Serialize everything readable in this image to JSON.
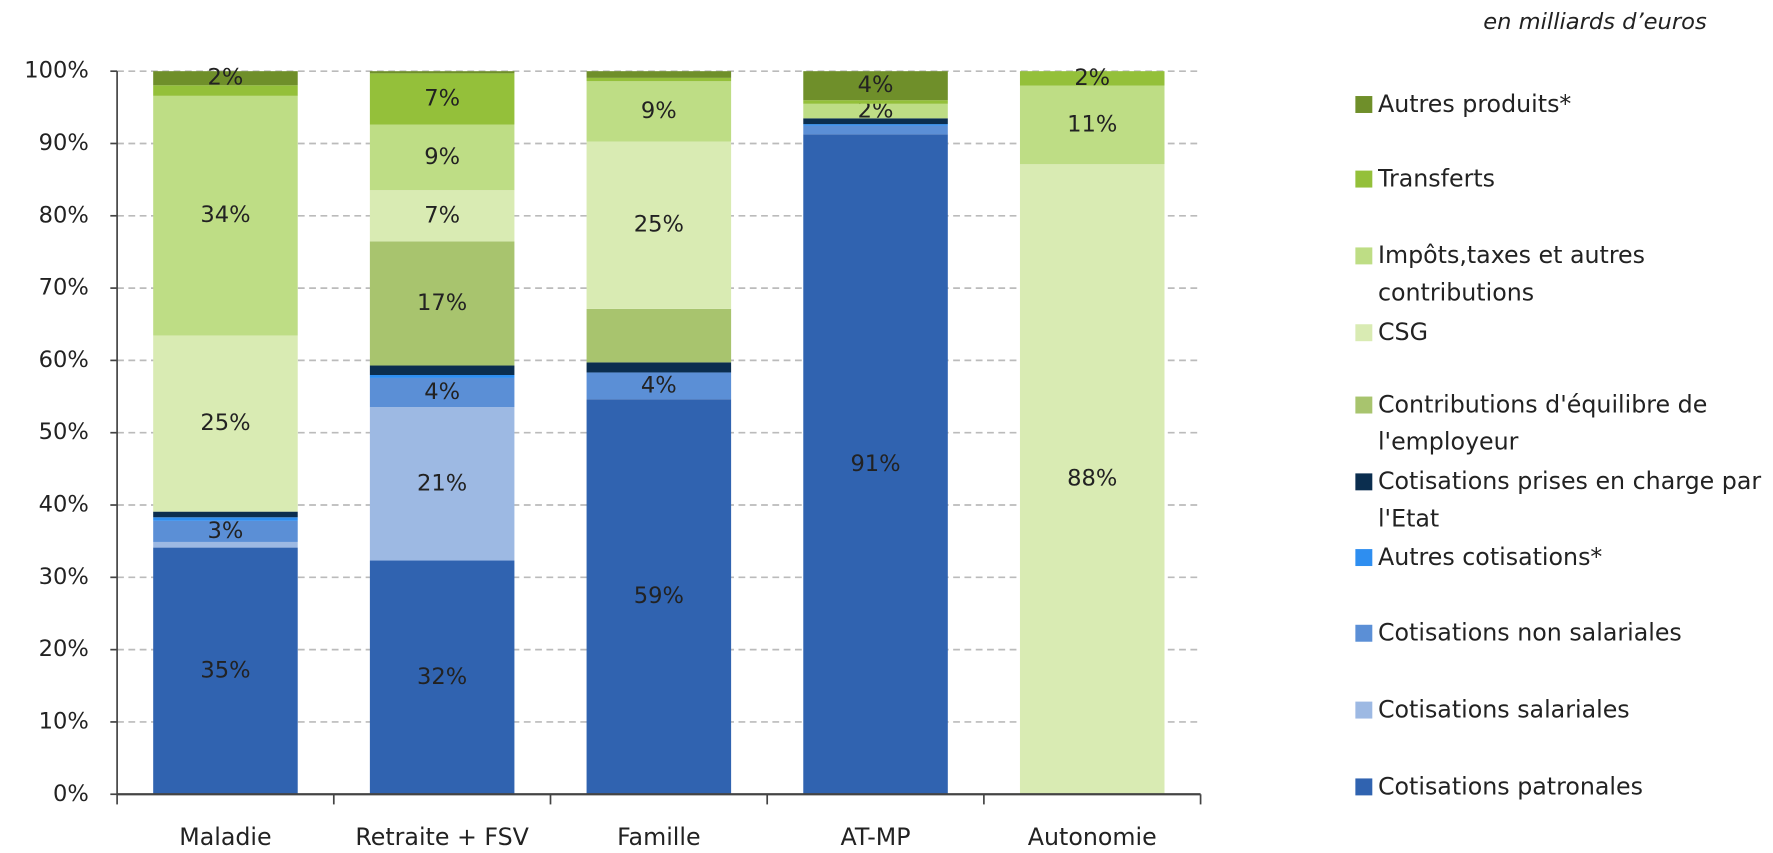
{
  "chart_data": {
    "type": "stacked_percent",
    "subtitle": "en milliards d’euros",
    "categories": [
      "Maladie",
      "Retraite + FSV",
      "Famille",
      "AT-MP",
      "Autonomie"
    ],
    "ylim": [
      0,
      100
    ],
    "yticks": [
      {
        "value": 0,
        "label": "0%"
      },
      {
        "value": 10,
        "label": "10%"
      },
      {
        "value": 20,
        "label": "20%"
      },
      {
        "value": 30,
        "label": "30%"
      },
      {
        "value": 40,
        "label": "40%"
      },
      {
        "value": 50,
        "label": "50%"
      },
      {
        "value": 60,
        "label": "60%"
      },
      {
        "value": 70,
        "label": "70%"
      },
      {
        "value": 80,
        "label": "80%"
      },
      {
        "value": 90,
        "label": "90%"
      },
      {
        "value": 100,
        "label": "100%"
      }
    ],
    "grid": true,
    "series": [
      {
        "name": "Cotisations patronales",
        "color": "#3063b0",
        "values": [
          35,
          32,
          59,
          91,
          0
        ],
        "value_labels": [
          "35%",
          "32%",
          "59%",
          "91%",
          null
        ]
      },
      {
        "name": "Cotisations salariales",
        "color": "#9db9e3",
        "values": [
          0.8,
          21,
          0,
          0,
          0
        ],
        "value_labels": [
          null,
          "21%",
          null,
          null,
          null
        ]
      },
      {
        "name": "Cotisations non salariales",
        "color": "#5b8fd6",
        "values": [
          3,
          4,
          4,
          1.2,
          0
        ],
        "value_labels": [
          "3%",
          "4%",
          "4%",
          null,
          null
        ]
      },
      {
        "name": "Autres cotisations*",
        "color": "#2e8ef0",
        "values": [
          0.5,
          0.4,
          0,
          0.2,
          0
        ],
        "value_labels": [
          null,
          null,
          null,
          null,
          null
        ]
      },
      {
        "name": "Cotisations prises en charge par l'Etat",
        "color": "#0b2e4f",
        "values": [
          0.8,
          1.3,
          1.5,
          0.8,
          0
        ],
        "value_labels": [
          null,
          null,
          null,
          null,
          null
        ]
      },
      {
        "name": "Contributions d'équilibre de l'employeur",
        "color": "#a8c46e",
        "values": [
          0,
          17,
          8,
          0,
          0
        ],
        "value_labels": [
          null,
          "17%",
          null,
          null,
          null
        ]
      },
      {
        "name": "CSG",
        "color": "#d9ebb3",
        "values": [
          25,
          7,
          25,
          0,
          88
        ],
        "value_labels": [
          "25%",
          "7%",
          "25%",
          null,
          "88%"
        ]
      },
      {
        "name": "Impôts,taxes et autres contributions",
        "color": "#bedd85",
        "values": [
          34,
          9,
          9,
          2,
          11
        ],
        "value_labels": [
          "34%",
          "9%",
          "9%",
          "2%",
          "11%"
        ]
      },
      {
        "name": "Transferts",
        "color": "#94c03a",
        "values": [
          1.5,
          7,
          0.5,
          0.5,
          2
        ],
        "value_labels": [
          null,
          "7%",
          null,
          null,
          "2%"
        ]
      },
      {
        "name": "Autres produits*",
        "color": "#6f8f2a",
        "values": [
          2,
          0.3,
          1,
          4,
          0
        ],
        "value_labels": [
          "2%",
          null,
          null,
          "4%",
          null
        ]
      }
    ]
  }
}
